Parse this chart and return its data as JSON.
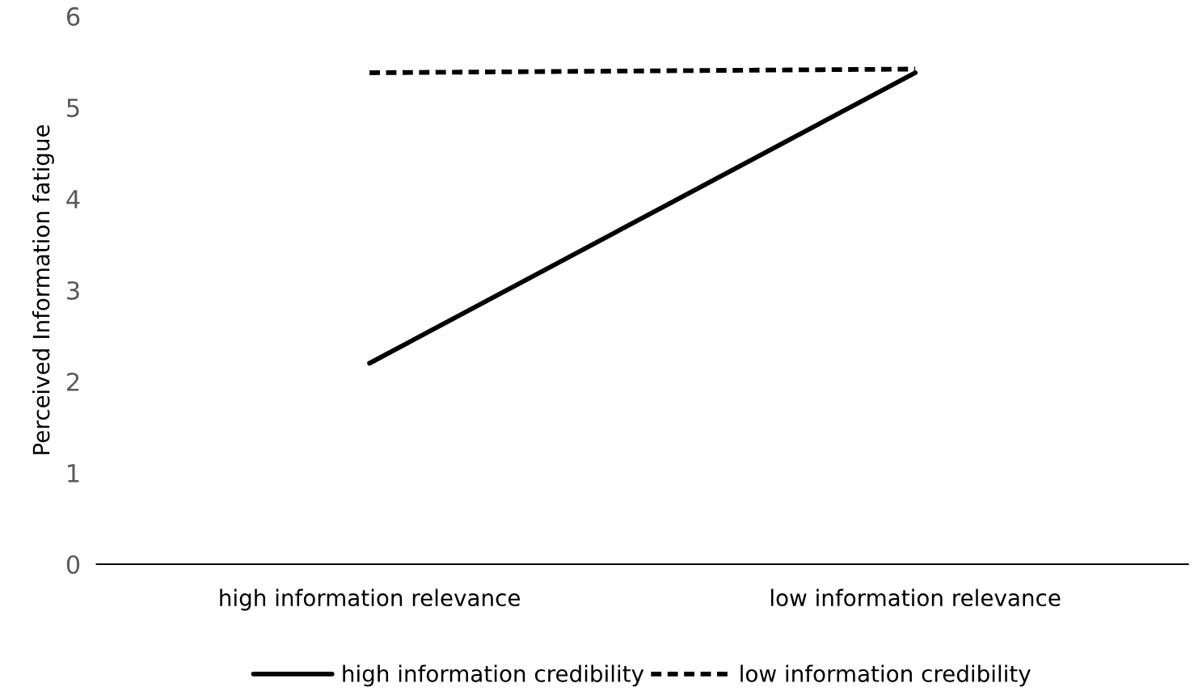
{
  "chart_data": {
    "type": "line",
    "ylabel": "Perceived Information fatigue",
    "categories": [
      "high information relevance",
      "low information relevance"
    ],
    "series": [
      {
        "name": "high information credibility",
        "color": "#000000",
        "values": [
          2.2,
          5.38
        ],
        "line_style": "solid"
      },
      {
        "name": "low information credibility",
        "color": "#000000",
        "values": [
          5.38,
          5.42
        ],
        "line_style": "dashed"
      }
    ],
    "ylim": [
      0,
      6
    ],
    "yticks": [
      0,
      1,
      2,
      3,
      4,
      5,
      6
    ],
    "grid": false,
    "legend": "bottom",
    "marker": "none"
  }
}
